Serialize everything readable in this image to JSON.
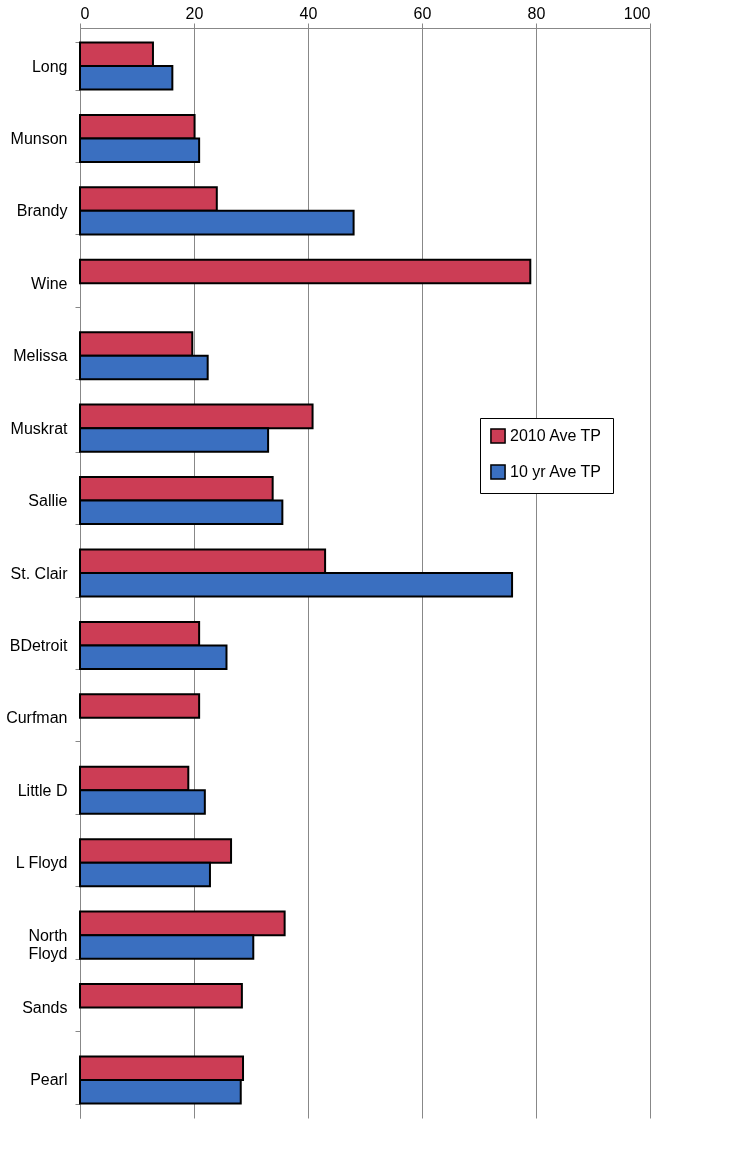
{
  "chart_data": {
    "type": "bar",
    "orientation": "horizontal",
    "categories": [
      "Long",
      "Munson",
      "Brandy",
      "Wine",
      "Melissa",
      "Muskrat",
      "Sallie",
      "St. Clair",
      "BDetroit",
      "Curfman",
      "Little D",
      "L Floyd",
      "North Floyd",
      "Sands",
      "Pearl"
    ],
    "series": [
      {
        "name": "2010 Ave TP",
        "color": "#cc3d55",
        "values": [
          12.8,
          20.1,
          24,
          79,
          19.7,
          40.8,
          33.8,
          43,
          20.9,
          20.9,
          19,
          26.5,
          35.9,
          28.4,
          28.6
        ]
      },
      {
        "name": "10 yr Ave TP",
        "color": "#3a6fc0",
        "values": [
          16.2,
          20.9,
          48,
          null,
          22.4,
          33,
          35.5,
          75.8,
          25.7,
          null,
          21.9,
          22.8,
          30.4,
          null,
          28.2
        ]
      }
    ],
    "xlim": [
      0,
      100
    ],
    "xticks": [
      0,
      20,
      40,
      60,
      80,
      100
    ],
    "grid": "x",
    "legend": "right"
  }
}
